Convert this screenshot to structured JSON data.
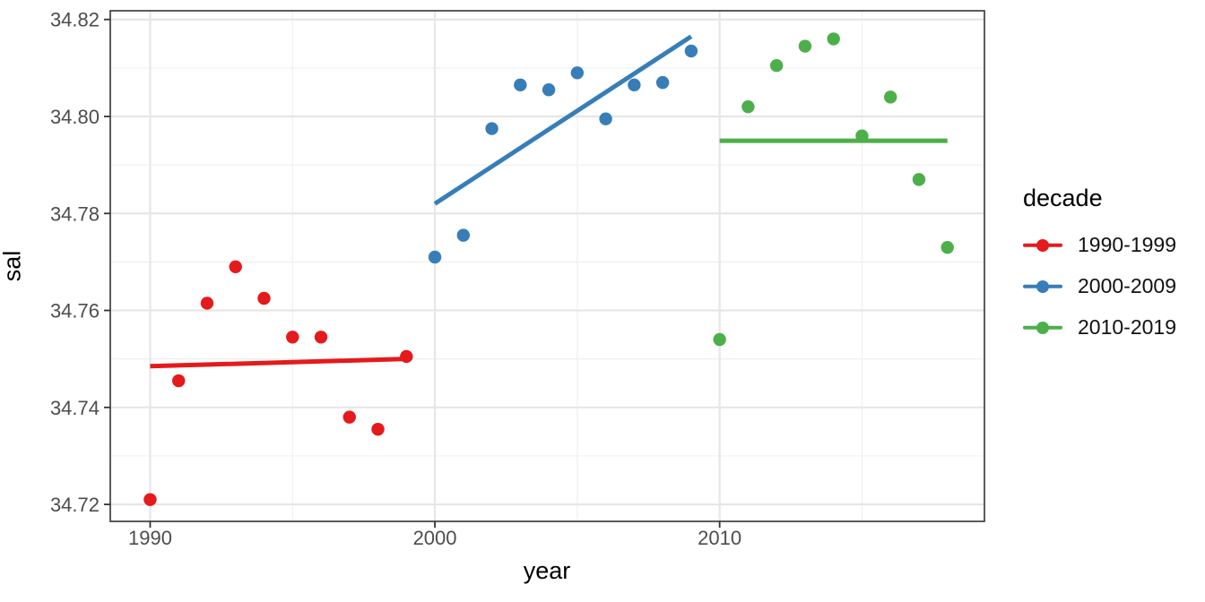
{
  "chart_data": {
    "type": "scatter",
    "title": "",
    "xlabel": "year",
    "ylabel": "sal",
    "grid": true,
    "xlim": [
      1988.6,
      2019.3
    ],
    "ylim": [
      34.7165,
      34.8218
    ],
    "x_ticks": [
      1990,
      2000,
      2010
    ],
    "x_tick_labels": [
      "1990",
      "2000",
      "2010"
    ],
    "x_minor_ticks": [
      1995,
      2005,
      2015
    ],
    "y_ticks": [
      34.72,
      34.74,
      34.76,
      34.78,
      34.8,
      34.82
    ],
    "y_tick_labels": [
      "34.72",
      "34.74",
      "34.76",
      "34.78",
      "34.80",
      "34.82"
    ],
    "y_minor_ticks": [
      34.73,
      34.75,
      34.77,
      34.79,
      34.81
    ],
    "legend": {
      "title": "decade",
      "position": "right"
    },
    "series": [
      {
        "name": "1990-1999",
        "color": "#E41A1C",
        "x": [
          1990,
          1991,
          1992,
          1993,
          1994,
          1995,
          1996,
          1997,
          1998,
          1999
        ],
        "y": [
          34.721,
          34.7455,
          34.7615,
          34.769,
          34.7625,
          34.7545,
          34.7545,
          34.738,
          34.7355,
          34.7505
        ],
        "fit_line": {
          "x": [
            1990,
            1999
          ],
          "y": [
            34.7485,
            34.75
          ]
        }
      },
      {
        "name": "2000-2009",
        "color": "#377EB8",
        "x": [
          2000,
          2001,
          2002,
          2003,
          2004,
          2005,
          2006,
          2007,
          2008,
          2009
        ],
        "y": [
          34.771,
          34.7755,
          34.7975,
          34.8065,
          34.8055,
          34.809,
          34.7995,
          34.8065,
          34.807,
          34.8135
        ],
        "fit_line": {
          "x": [
            2000,
            2009
          ],
          "y": [
            34.782,
            34.8165
          ]
        }
      },
      {
        "name": "2010-2019",
        "color": "#4DAF4A",
        "x": [
          2010,
          2011,
          2012,
          2013,
          2014,
          2015,
          2016,
          2017,
          2018
        ],
        "y": [
          34.754,
          34.802,
          34.8105,
          34.8145,
          34.816,
          34.796,
          34.804,
          34.787,
          34.773
        ],
        "fit_line": {
          "x": [
            2010,
            2018
          ],
          "y": [
            34.795,
            34.795
          ]
        }
      }
    ]
  }
}
